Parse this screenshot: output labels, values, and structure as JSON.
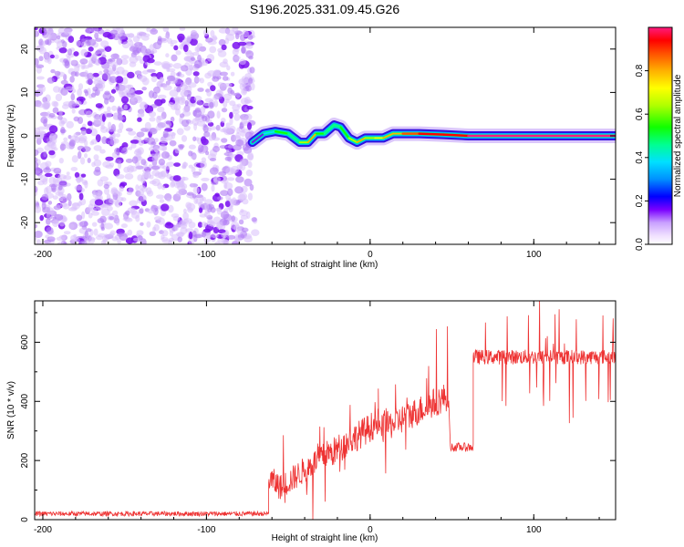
{
  "title": "S196.2025.331.09.45.G26",
  "chart_data": [
    {
      "type": "heatmap",
      "xlabel": "Height of straight line (km)",
      "ylabel": "Frequency (Hz)",
      "xlim": [
        -205,
        150
      ],
      "ylim": [
        -25,
        25
      ],
      "xticks": [
        -200,
        -100,
        0,
        100
      ],
      "yticks": [
        -20,
        -10,
        0,
        10,
        20
      ],
      "colorbar": {
        "label": "Normalized spectral amplitude",
        "range": [
          0,
          1
        ],
        "ticks": [
          0.0,
          0.2,
          0.4,
          0.6,
          0.8
        ]
      },
      "noise_region_x": [
        -205,
        -72
      ],
      "signal_track": {
        "x": [
          -72,
          -65,
          -58,
          -50,
          -43,
          -38,
          -33,
          -28,
          -22,
          -18,
          -13,
          -8,
          -3,
          3,
          8,
          14,
          20,
          30,
          45,
          60,
          150
        ],
        "frequency": [
          -1.5,
          0.5,
          1.0,
          0.5,
          -1.5,
          -1.5,
          0.5,
          0.5,
          2.5,
          2.0,
          -0.5,
          -1.5,
          -0.5,
          -0.5,
          -0.5,
          0.5,
          0.5,
          0.5,
          0.3,
          0.0,
          0.0
        ],
        "peak_amplitude": [
          0.2,
          0.45,
          0.55,
          0.5,
          0.7,
          0.8,
          0.6,
          0.5,
          0.5,
          0.6,
          0.7,
          0.8,
          0.7,
          0.75,
          0.8,
          0.85,
          0.9,
          0.95,
          0.97,
          1.0,
          1.0
        ]
      }
    },
    {
      "type": "line",
      "xlabel": "Height of straight line (km)",
      "ylabel": "SNR (10 * v/v)",
      "xlim": [
        -205,
        150
      ],
      "ylim": [
        0,
        740
      ],
      "xticks": [
        -200,
        -100,
        0,
        100
      ],
      "yticks": [
        0,
        200,
        400,
        600
      ],
      "color": "#ee3333",
      "series": [
        {
          "name": "SNR",
          "segments": [
            {
              "x": [
                -205,
                -62
              ],
              "level": [
                20,
                20
              ],
              "noise": 8
            },
            {
              "x": [
                -62,
                -52
              ],
              "level": [
                140,
                100
              ],
              "noise": 45
            },
            {
              "x": [
                -52,
                -25
              ],
              "level": [
                120,
                230
              ],
              "noise": 45
            },
            {
              "x": [
                -25,
                5
              ],
              "level": [
                220,
                330
              ],
              "noise": 50
            },
            {
              "x": [
                5,
                48
              ],
              "level": [
                300,
                420
              ],
              "noise": 50
            },
            {
              "x": [
                49,
                63
              ],
              "level": [
                245,
                245
              ],
              "noise": 15
            },
            {
              "x": [
                63,
                150
              ],
              "level": [
                550,
                550
              ],
              "noise": 25
            }
          ]
        }
      ]
    }
  ]
}
